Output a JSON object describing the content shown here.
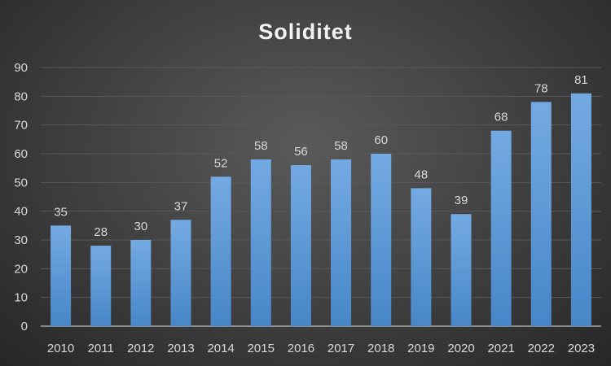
{
  "chart_data": {
    "type": "bar",
    "title": "Soliditet",
    "xlabel": "",
    "ylabel": "",
    "categories": [
      "2010",
      "2011",
      "2012",
      "2013",
      "2014",
      "2015",
      "2016",
      "2017",
      "2018",
      "2019",
      "2020",
      "2021",
      "2022",
      "2023"
    ],
    "values": [
      35,
      28,
      30,
      37,
      52,
      58,
      56,
      58,
      60,
      48,
      39,
      68,
      78,
      81
    ],
    "ylim": [
      0,
      90
    ],
    "yticks": [
      0,
      10,
      20,
      30,
      40,
      50,
      60,
      70,
      80,
      90
    ],
    "grid": true,
    "legend": "none",
    "colors": {
      "bar_top": "#74aae3",
      "bar_bottom": "#4786c8",
      "grid": "#595959",
      "axis": "#a6a6a6"
    }
  }
}
